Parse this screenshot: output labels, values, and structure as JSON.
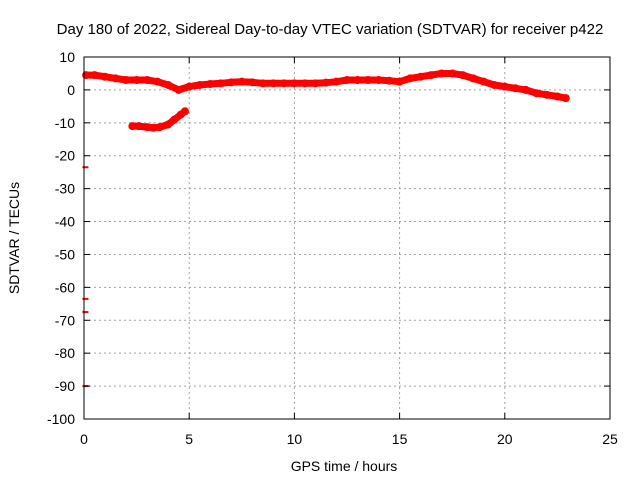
{
  "chart_data": {
    "type": "scatter",
    "title": "Day 180 of 2022, Sidereal Day-to-day VTEC variation (SDTVAR) for receiver p422",
    "xlabel": "GPS time / hours",
    "ylabel": "SDTVAR / TECUs",
    "xlim": [
      0,
      25
    ],
    "ylim": [
      -100,
      10
    ],
    "xticks": [
      0,
      5,
      10,
      15,
      20,
      25
    ],
    "yticks": [
      10,
      0,
      -10,
      -20,
      -30,
      -40,
      -50,
      -60,
      -70,
      -80,
      -90,
      -100
    ],
    "grid": true,
    "series_color": "#ff0000",
    "series": [
      {
        "name": "main",
        "x": [
          0.1,
          0.5,
          1.0,
          1.5,
          2.0,
          2.5,
          3.0,
          3.5,
          4.0,
          4.5,
          5.0,
          5.5,
          6.0,
          6.5,
          7.0,
          7.5,
          8.0,
          8.5,
          9.0,
          9.5,
          10.0,
          10.5,
          11.0,
          11.5,
          12.0,
          12.5,
          13.0,
          13.5,
          14.0,
          14.5,
          15.0,
          15.5,
          16.0,
          16.5,
          17.0,
          17.5,
          18.0,
          18.5,
          19.0,
          19.5,
          20.0,
          20.5,
          21.0,
          21.5,
          22.0,
          22.5,
          22.9
        ],
        "values": [
          4.5,
          4.5,
          4.0,
          3.5,
          3.0,
          3.0,
          3.0,
          2.5,
          1.5,
          0.0,
          1.0,
          1.5,
          1.8,
          2.0,
          2.3,
          2.5,
          2.3,
          2.0,
          2.0,
          2.0,
          2.0,
          2.0,
          2.0,
          2.2,
          2.5,
          3.0,
          3.0,
          3.0,
          3.0,
          2.8,
          2.5,
          3.5,
          4.0,
          4.5,
          5.0,
          5.0,
          4.5,
          3.5,
          2.5,
          1.5,
          1.0,
          0.5,
          0.0,
          -1.0,
          -1.5,
          -2.0,
          -2.5
        ]
      },
      {
        "name": "segment",
        "x": [
          2.3,
          2.6,
          3.0,
          3.3,
          3.6,
          4.0,
          4.3,
          4.6,
          4.8
        ],
        "values": [
          -11.0,
          -11.0,
          -11.3,
          -11.5,
          -11.3,
          -10.5,
          -9.0,
          -7.5,
          -6.5
        ]
      },
      {
        "name": "isolated",
        "x": [
          0.02,
          0.02,
          0.02,
          0.02
        ],
        "values": [
          -23.5,
          -63.5,
          -67.5,
          -90.0
        ]
      }
    ]
  }
}
